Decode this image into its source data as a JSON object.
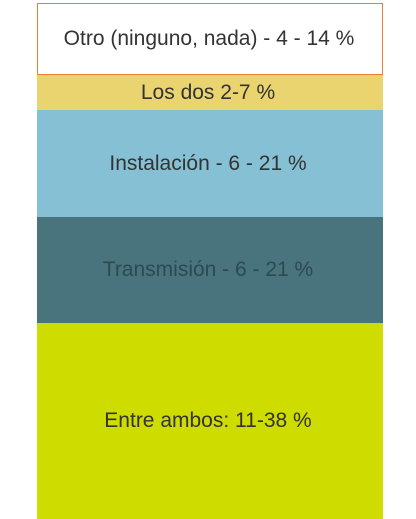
{
  "blocks": [
    {
      "label": "Otro (ninguno, nada) - 4 - 14 %"
    },
    {
      "label": "Los dos 2-7 %"
    },
    {
      "label": "Instalación - 6 - 21 %"
    },
    {
      "label": "Transmisión - 6 - 21 %"
    },
    {
      "label": "Entre ambos: 11-38 %"
    }
  ]
}
